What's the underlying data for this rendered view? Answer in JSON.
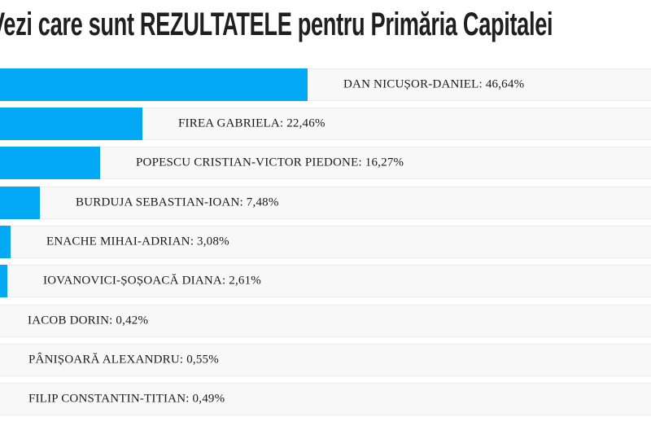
{
  "page": {
    "title": "Vezi care sunt REZULTATELE pentru Primăria Capitalei"
  },
  "chart_data": {
    "type": "bar",
    "orientation": "horizontal",
    "title": "Vezi care sunt REZULTATELE pentru Primăria Capitalei",
    "categories": [
      "DAN NICUȘOR-DANIEL",
      "FIREA GABRIELA",
      "POPESCU CRISTIAN-VICTOR PIEDONE",
      "BURDUJA SEBASTIAN-IOAN",
      "ENACHE MIHAI-ADRIAN",
      "IOVANOVICI-ȘOȘOACĂ DIANA",
      "IACOB DORIN",
      "PÂNIȘOARĂ ALEXANDRU",
      "FILIP CONSTANTIN-TITIAN"
    ],
    "values": [
      46.64,
      22.46,
      16.27,
      7.48,
      3.08,
      2.61,
      0.42,
      0.55,
      0.49
    ],
    "labels": [
      "DAN NICUȘOR-DANIEL: 46,64%",
      "FIREA GABRIELA: 22,46%",
      "POPESCU CRISTIAN-VICTOR PIEDONE: 16,27%",
      "BURDUJA SEBASTIAN-IOAN: 7,48%",
      "ENACHE MIHAI-ADRIAN: 3,08%",
      "IOVANOVICI-ȘOȘOACĂ DIANA: 2,61%",
      "IACOB DORIN: 0,42%",
      "PÂNIȘOARĂ ALEXANDRU: 0,55%",
      "FILIP CONSTANTIN-TITIAN: 0,49%"
    ],
    "value_suffix": "%",
    "decimal_separator": ",",
    "xlim": [
      0,
      50
    ],
    "grid": false,
    "legend": false,
    "colors": {
      "bar": "#03a9f4",
      "row_background": "#f8f8f8",
      "row_border": "#ececec",
      "label_text": "#1a1a1a",
      "title_text": "#1f1f1f"
    }
  }
}
